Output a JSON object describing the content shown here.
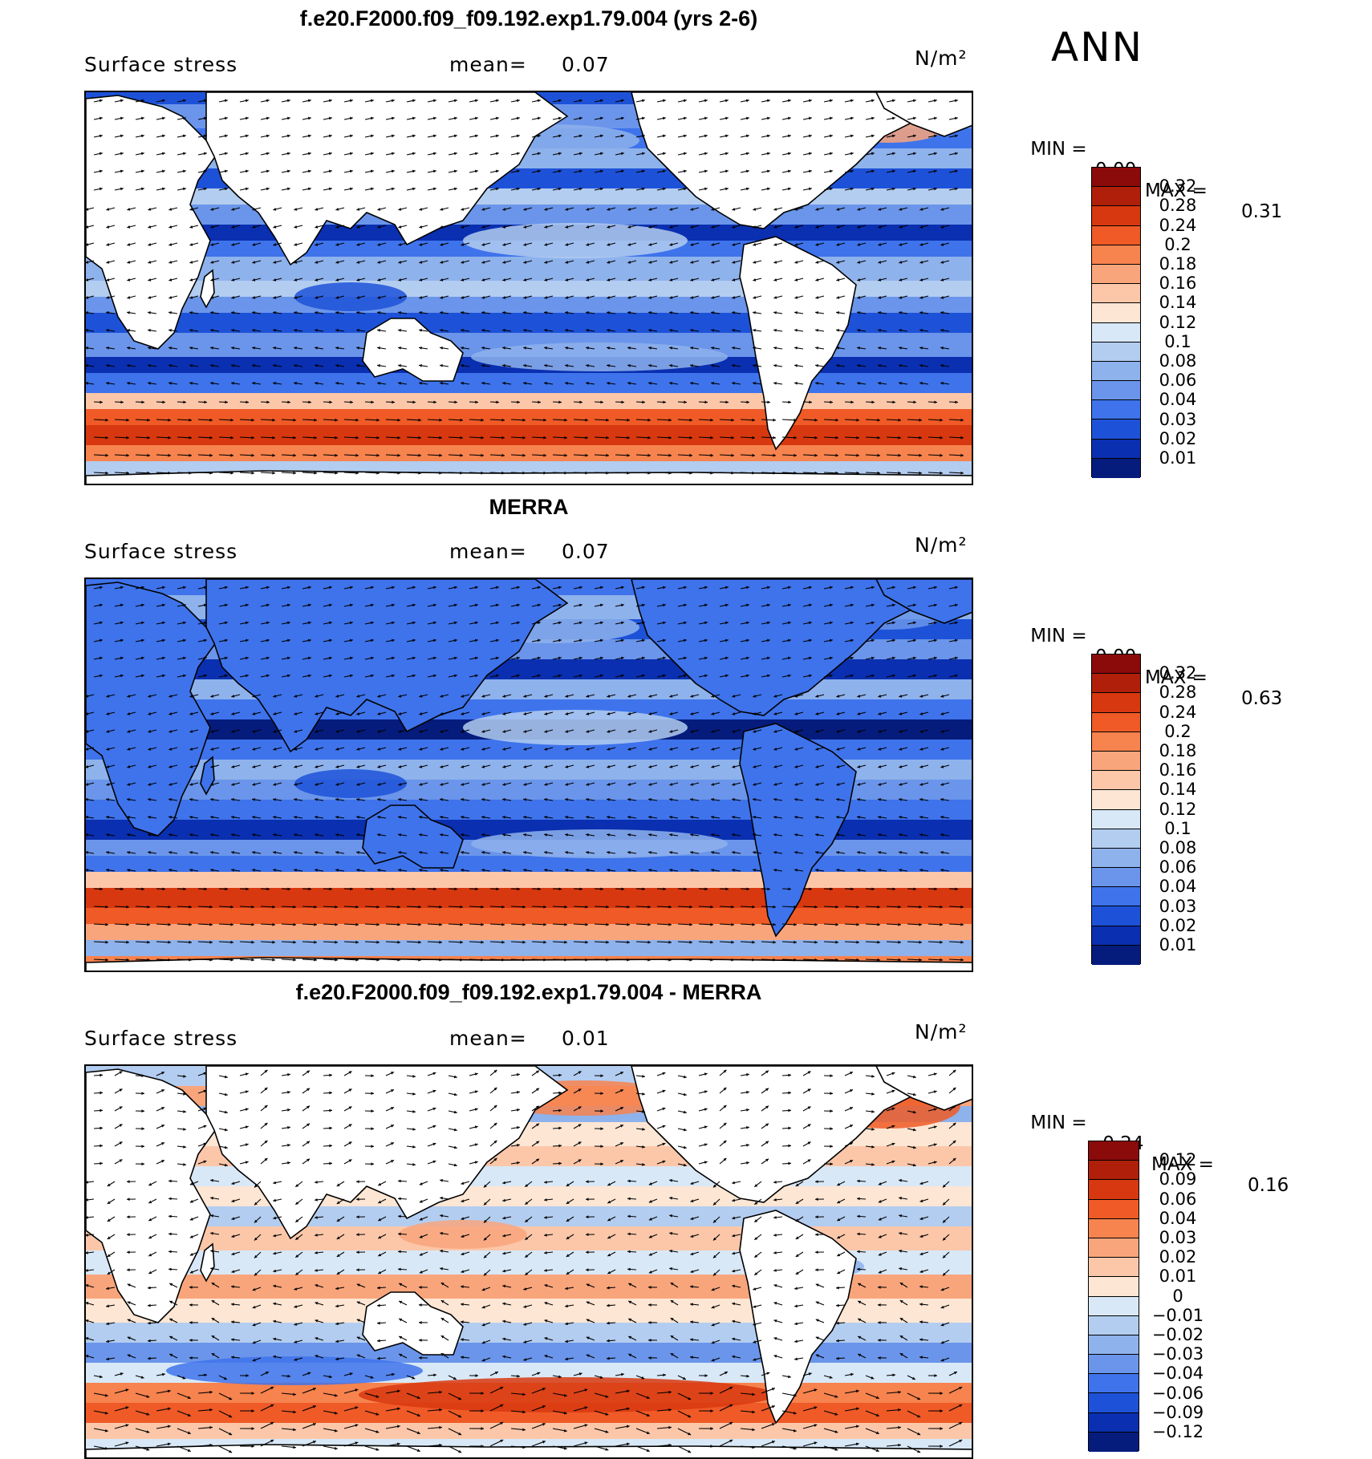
{
  "season": "ANN",
  "panels": [
    {
      "title": "f.e20.F2000.f09_f09.192.exp1.79.004 (yrs 2-6)",
      "variable": "Surface stress",
      "mean_label": "mean=",
      "mean_value": "0.07",
      "units": "N/m²",
      "min_label": "MIN =",
      "min_value": "0.00",
      "max_label": "MAX =",
      "max_value": "0.31",
      "colorbar": {
        "levels": [
          "0.32",
          "0.28",
          "0.24",
          "0.2",
          "0.18",
          "0.16",
          "0.14",
          "0.12",
          "0.1",
          "0.08",
          "0.06",
          "0.04",
          "0.03",
          "0.02",
          "0.01"
        ],
        "colors": [
          "#8b0a0a",
          "#b01f0a",
          "#d8380f",
          "#ef5a26",
          "#f7834e",
          "#f9a57c",
          "#fcc7a9",
          "#fde6d3",
          "#d8e8f7",
          "#b3cdf0",
          "#8eb2ec",
          "#6a95ea",
          "#3e73eb",
          "#1d52d8",
          "#0a2fb0",
          "#051c7d"
        ]
      }
    },
    {
      "title": "MERRA",
      "variable": "Surface stress",
      "mean_label": "mean=",
      "mean_value": "0.07",
      "units": "N/m²",
      "min_label": "MIN =",
      "min_value": "0.00",
      "max_label": "MAX =",
      "max_value": "0.63",
      "colorbar": {
        "levels": [
          "0.32",
          "0.28",
          "0.24",
          "0.2",
          "0.18",
          "0.16",
          "0.14",
          "0.12",
          "0.1",
          "0.08",
          "0.06",
          "0.04",
          "0.03",
          "0.02",
          "0.01"
        ],
        "colors": [
          "#8b0a0a",
          "#b01f0a",
          "#d8380f",
          "#ef5a26",
          "#f7834e",
          "#f9a57c",
          "#fcc7a9",
          "#fde6d3",
          "#d8e8f7",
          "#b3cdf0",
          "#8eb2ec",
          "#6a95ea",
          "#3e73eb",
          "#1d52d8",
          "#0a2fb0",
          "#051c7d"
        ]
      }
    },
    {
      "title": "f.e20.F2000.f09_f09.192.exp1.79.004 - MERRA",
      "variable": "Surface stress",
      "mean_label": "mean=",
      "mean_value": "0.01",
      "units": "N/m²",
      "min_label": "MIN =",
      "min_value": "−0.24",
      "max_label": "MAX =",
      "max_value": "0.16",
      "colorbar": {
        "levels": [
          "0.12",
          "0.09",
          "0.06",
          "0.04",
          "0.03",
          "0.02",
          "0.01",
          "0",
          "−0.01",
          "−0.02",
          "−0.03",
          "−0.04",
          "−0.06",
          "−0.09",
          "−0.12"
        ],
        "colors": [
          "#8b0a0a",
          "#b01f0a",
          "#d8380f",
          "#ef5a26",
          "#f7834e",
          "#f9a57c",
          "#fcc7a9",
          "#fde6d3",
          "#d8e8f7",
          "#b3cdf0",
          "#8eb2ec",
          "#6a95ea",
          "#3e73eb",
          "#1d52d8",
          "#0a2fb0",
          "#051c7d"
        ]
      }
    }
  ]
}
